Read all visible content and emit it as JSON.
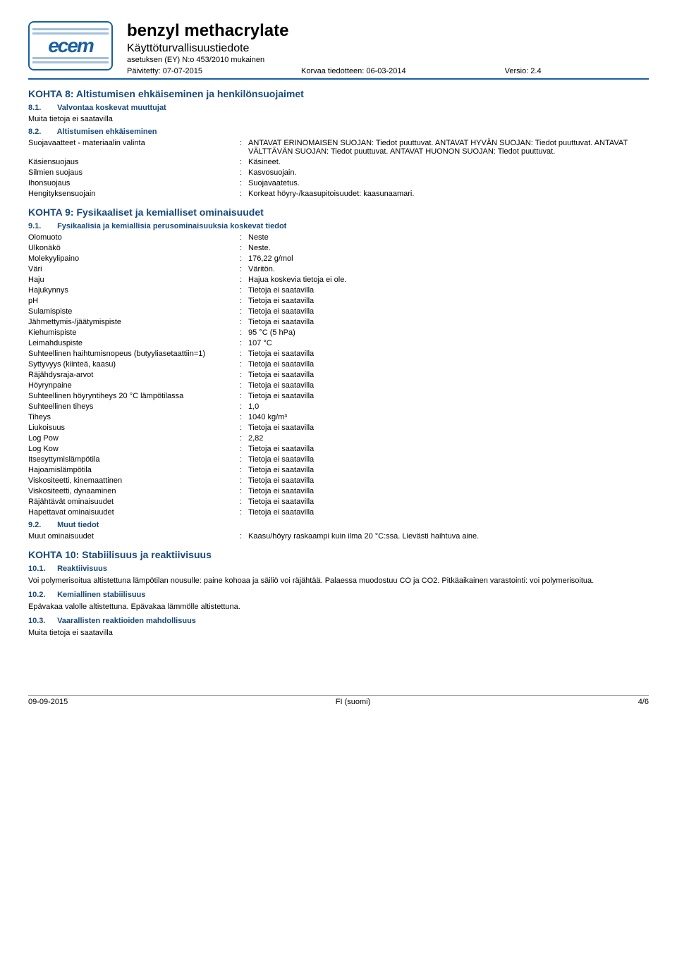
{
  "header": {
    "logo_text": "ecem",
    "title": "benzyl methacrylate",
    "subtitle": "Käyttöturvallisuustiedote",
    "regulation": "asetuksen (EY) N:o 453/2010 mukainen",
    "updated_label": "Päivitetty: 07-07-2015",
    "replaces_label": "Korvaa tiedotteen: 06-03-2014",
    "version_label": "Versio: 2.4"
  },
  "section8": {
    "heading": "KOHTA 8: Altistumisen ehkäiseminen ja henkilönsuojaimet",
    "sub81_num": "8.1.",
    "sub81_title": "Valvontaa koskevat muuttujat",
    "sub81_text": "Muita tietoja ei saatavilla",
    "sub82_num": "8.2.",
    "sub82_title": "Altistumisen ehkäiseminen",
    "rows": [
      {
        "k": "Suojavaatteet - materiaalin valinta",
        "v": "ANTAVAT ERINOMAISEN SUOJAN: Tiedot puuttuvat. ANTAVAT HYVÄN SUOJAN: Tiedot puuttuvat. ANTAVAT VÄLTTÄVÄN SUOJAN: Tiedot puuttuvat. ANTAVAT HUONON SUOJAN: Tiedot puuttuvat."
      },
      {
        "k": "Käsiensuojaus",
        "v": "Käsineet."
      },
      {
        "k": "Silmien suojaus",
        "v": "Kasvosuojain."
      },
      {
        "k": "Ihonsuojaus",
        "v": "Suojavaatetus."
      },
      {
        "k": "Hengityksensuojain",
        "v": "Korkeat höyry-/kaasupitoisuudet: kaasunaamari."
      }
    ]
  },
  "section9": {
    "heading": "KOHTA 9: Fysikaaliset ja kemialliset ominaisuudet",
    "sub91_num": "9.1.",
    "sub91_title": "Fysikaalisia ja kemiallisia perusominaisuuksia koskevat tiedot",
    "rows": [
      {
        "k": "Olomuoto",
        "v": "Neste"
      },
      {
        "k": "Ulkonäkö",
        "v": "Neste."
      },
      {
        "k": "Molekyylipaino",
        "v": "176,22 g/mol"
      },
      {
        "k": "Väri",
        "v": "Väritön."
      },
      {
        "k": "Haju",
        "v": "Hajua koskevia tietoja ei ole."
      },
      {
        "k": "Hajukynnys",
        "v": "Tietoja ei saatavilla"
      },
      {
        "k": "pH",
        "v": "Tietoja ei saatavilla"
      },
      {
        "k": "Sulamispiste",
        "v": "Tietoja ei saatavilla"
      },
      {
        "k": "Jähmettymis-/jäätymispiste",
        "v": "Tietoja ei saatavilla"
      },
      {
        "k": "Kiehumispiste",
        "v": "95 °C (5 hPa)"
      },
      {
        "k": "Leimahduspiste",
        "v": "107 °C"
      },
      {
        "k": "Suhteellinen haihtumisnopeus (butyyliasetaattiin=1)",
        "v": "Tietoja ei saatavilla"
      },
      {
        "k": "Syttyvyys (kiinteä, kaasu)",
        "v": "Tietoja ei saatavilla"
      },
      {
        "k": "Räjähdysraja-arvot",
        "v": "Tietoja ei saatavilla"
      },
      {
        "k": "Höyrynpaine",
        "v": "Tietoja ei saatavilla"
      },
      {
        "k": "Suhteellinen höyryntiheys 20 °C lämpötilassa",
        "v": "Tietoja ei saatavilla"
      },
      {
        "k": "Suhteellinen tiheys",
        "v": "1,0"
      },
      {
        "k": "Tiheys",
        "v": "1040 kg/m³"
      },
      {
        "k": "Liukoisuus",
        "v": "Tietoja ei saatavilla"
      },
      {
        "k": "Log Pow",
        "v": "2,82"
      },
      {
        "k": "Log Kow",
        "v": "Tietoja ei saatavilla"
      },
      {
        "k": "Itsesyttymislämpötila",
        "v": "Tietoja ei saatavilla"
      },
      {
        "k": "Hajoamislämpötila",
        "v": "Tietoja ei saatavilla"
      },
      {
        "k": "Viskositeetti, kinemaattinen",
        "v": "Tietoja ei saatavilla"
      },
      {
        "k": "Viskositeetti, dynaaminen",
        "v": "Tietoja ei saatavilla"
      },
      {
        "k": "Räjähtävät ominaisuudet",
        "v": "Tietoja ei saatavilla"
      },
      {
        "k": "Hapettavat ominaisuudet",
        "v": "Tietoja ei saatavilla"
      }
    ],
    "sub92_num": "9.2.",
    "sub92_title": "Muut tiedot",
    "rows92": [
      {
        "k": "Muut ominaisuudet",
        "v": "Kaasu/höyry raskaampi kuin ilma 20 °C:ssa. Lievästi haihtuva aine."
      }
    ]
  },
  "section10": {
    "heading": "KOHTA 10: Stabiilisuus ja reaktiivisuus",
    "sub101_num": "10.1.",
    "sub101_title": "Reaktiivisuus",
    "sub101_text": "Voi polymerisoitua altistettuna lämpötilan nousulle: paine kohoaa ja säiliö voi räjähtää. Palaessa muodostuu CO ja CO2. Pitkäaikainen varastointi: voi polymerisoitua.",
    "sub102_num": "10.2.",
    "sub102_title": "Kemiallinen stabiilisuus",
    "sub102_text": "Epävakaa valolle altistettuna. Epävakaa lämmölle altistettuna.",
    "sub103_num": "10.3.",
    "sub103_title": "Vaarallisten reaktioiden mahdollisuus",
    "sub103_text": "Muita tietoja ei saatavilla"
  },
  "footer": {
    "date": "09-09-2015",
    "lang": "FI (suomi)",
    "page": "4/6"
  }
}
